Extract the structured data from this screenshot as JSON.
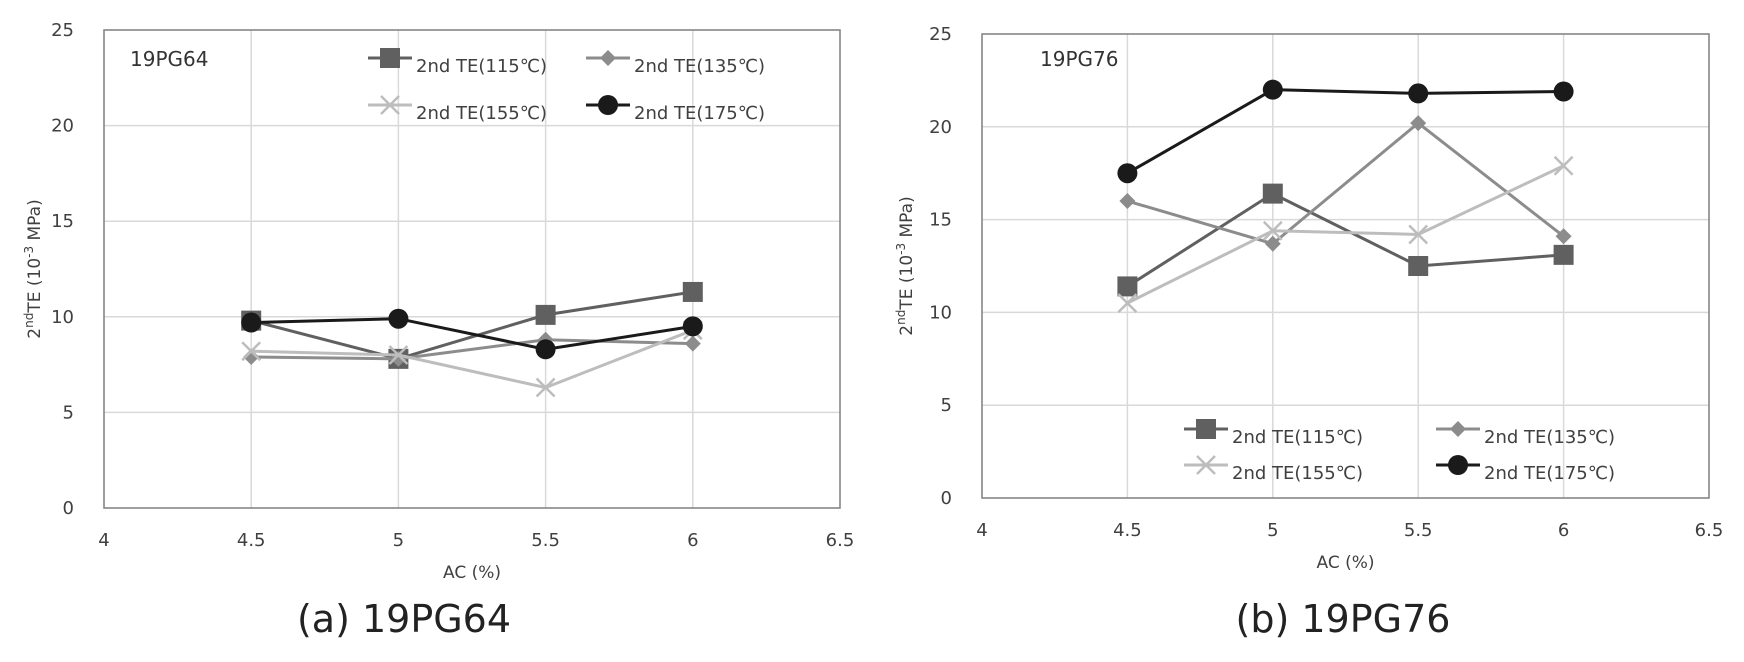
{
  "chart_data": [
    {
      "type": "line",
      "label": "19PG64",
      "caption": "(a) 19PG64",
      "xlabel": "AC (%)",
      "ylabel_main": "TE (10",
      "ylabel_base": "2",
      "ylabel_sup1": "nd",
      "ylabel_sup2": "-3",
      "ylabel_tail": " MPa)",
      "xlim": [
        4,
        6.5
      ],
      "ylim": [
        0,
        25
      ],
      "xticks": [
        "4",
        "4.5",
        "5",
        "5.5",
        "6",
        "6.5"
      ],
      "yticks": [
        "0",
        "5",
        "10",
        "15",
        "20",
        "25"
      ],
      "x": [
        4.5,
        5,
        5.5,
        6
      ],
      "legend_position": "top-right",
      "series": [
        {
          "name": "2nd TE(115℃)",
          "values": [
            9.8,
            7.8,
            10.1,
            11.3
          ],
          "color": "#606060",
          "marker": "square"
        },
        {
          "name": "2nd TE(135℃)",
          "values": [
            7.9,
            7.8,
            8.8,
            8.6
          ],
          "color": "#8c8c8c",
          "marker": "diamond"
        },
        {
          "name": "2nd TE(155℃)",
          "values": [
            8.2,
            8.0,
            6.3,
            9.3
          ],
          "color": "#bdbdbd",
          "marker": "x"
        },
        {
          "name": "2nd TE(175℃)",
          "values": [
            9.7,
            9.9,
            8.3,
            9.5
          ],
          "color": "#1a1a1a",
          "marker": "circle"
        }
      ]
    },
    {
      "type": "line",
      "label": "19PG76",
      "caption": "(b) 19PG76",
      "xlabel": "AC (%)",
      "ylabel_main": "TE (10",
      "ylabel_base": "2",
      "ylabel_sup1": "nd",
      "ylabel_sup2": "-3",
      "ylabel_tail": " MPa)",
      "xlim": [
        4,
        6.5
      ],
      "ylim": [
        0,
        25
      ],
      "xticks": [
        "4",
        "4.5",
        "5",
        "5.5",
        "6",
        "6.5"
      ],
      "yticks": [
        "0",
        "5",
        "10",
        "15",
        "20",
        "25"
      ],
      "x": [
        4.5,
        5,
        5.5,
        6
      ],
      "legend_position": "bottom-right",
      "series": [
        {
          "name": "2nd TE(115℃)",
          "values": [
            11.4,
            16.4,
            12.5,
            13.1
          ],
          "color": "#606060",
          "marker": "square"
        },
        {
          "name": "2nd TE(135℃)",
          "values": [
            16.0,
            13.7,
            20.2,
            14.1
          ],
          "color": "#8c8c8c",
          "marker": "diamond"
        },
        {
          "name": "2nd TE(155℃)",
          "values": [
            10.5,
            14.4,
            14.2,
            17.9
          ],
          "color": "#bdbdbd",
          "marker": "x"
        },
        {
          "name": "2nd TE(175℃)",
          "values": [
            17.5,
            22.0,
            21.8,
            21.9
          ],
          "color": "#1a1a1a",
          "marker": "circle"
        }
      ]
    }
  ]
}
